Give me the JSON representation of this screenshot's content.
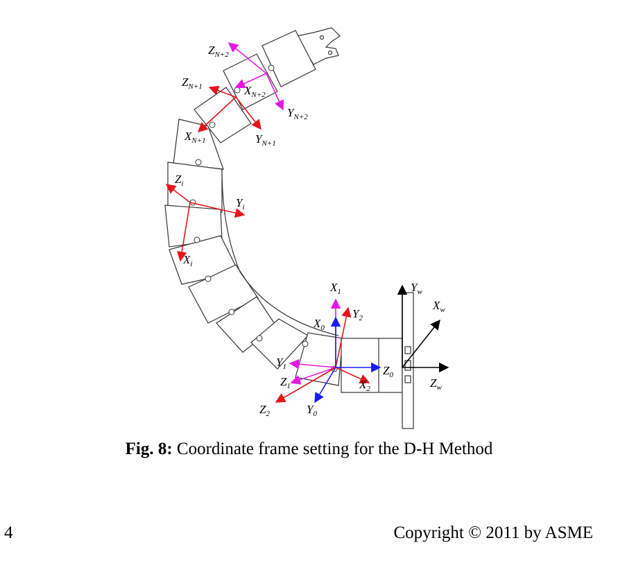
{
  "figure": {
    "labels": {
      "z_n2": {
        "main": "Z",
        "sub": "N+2"
      },
      "x_n2": {
        "main": "X",
        "sub": "N+2"
      },
      "y_n2": {
        "main": "Y",
        "sub": "N+2"
      },
      "z_n1": {
        "main": "Z",
        "sub": "N+1"
      },
      "x_n1": {
        "main": "X",
        "sub": "N+1"
      },
      "y_n1": {
        "main": "Y",
        "sub": "N+1"
      },
      "z_i": {
        "main": "Z",
        "sub": "i"
      },
      "y_i": {
        "main": "Y",
        "sub": "i"
      },
      "x_i": {
        "main": "X",
        "sub": "i"
      },
      "x_1": {
        "main": "X",
        "sub": "1"
      },
      "y_2": {
        "main": "Y",
        "sub": "2"
      },
      "x_0": {
        "main": "X",
        "sub": "0"
      },
      "y_1": {
        "main": "Y",
        "sub": "1"
      },
      "z_1": {
        "main": "Z",
        "sub": "1"
      },
      "z_0": {
        "main": "Z",
        "sub": "0"
      },
      "x_2": {
        "main": "X",
        "sub": "2"
      },
      "z_2": {
        "main": "Z",
        "sub": "2"
      },
      "y_0": {
        "main": "Y",
        "sub": "0"
      },
      "y_w": {
        "main": "Y",
        "sub": "w"
      },
      "x_w": {
        "main": "X",
        "sub": "w"
      },
      "z_w": {
        "main": "Z",
        "sub": "w"
      }
    },
    "colors": {
      "red": "#e8141b",
      "magenta": "#e617e6",
      "blue": "#1a1aff",
      "black": "#000000",
      "outline": "#333333"
    }
  },
  "caption": {
    "label": "Fig. 8:",
    "text": " Coordinate frame setting for the D-H Method"
  },
  "footer": {
    "page_number": "4",
    "copyright": "Copyright © 2011 by ASME"
  }
}
